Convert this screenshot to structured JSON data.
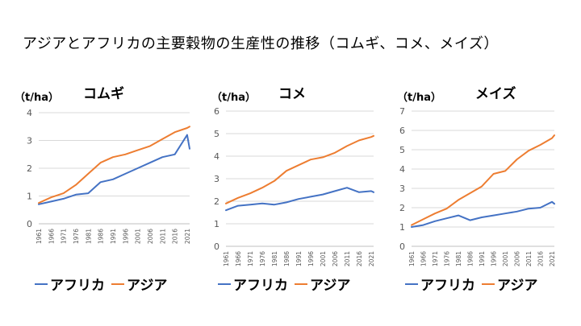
{
  "title": "アジアとアフリカの主要穀物の生産性の推移（コムギ、コメ、メイズ）",
  "colors": {
    "africa": "#4472C4",
    "asia": "#ED7D31",
    "grid": "#D9D9D9",
    "axis": "#BFBFBF"
  },
  "chart_data": [
    {
      "type": "line",
      "title": "コムギ",
      "ylabel": "（t/ha）",
      "ylim": [
        0,
        4
      ],
      "yticks": [
        0,
        1,
        2,
        3,
        4
      ],
      "xticks": [
        "1961",
        "1966",
        "1971",
        "1976",
        "1981",
        "1986",
        "1991",
        "1996",
        "2001",
        "2006",
        "2011",
        "2016",
        "2021"
      ],
      "x": [
        1961,
        1966,
        1971,
        1976,
        1981,
        1986,
        1991,
        1996,
        2001,
        2006,
        2011,
        2016,
        2021,
        2022
      ],
      "series": [
        {
          "name": "アフリカ",
          "values": [
            0.7,
            0.8,
            0.9,
            1.05,
            1.1,
            1.5,
            1.6,
            1.8,
            2.0,
            2.2,
            2.4,
            2.5,
            3.2,
            2.7
          ]
        },
        {
          "name": "アジア",
          "values": [
            0.75,
            0.95,
            1.1,
            1.4,
            1.8,
            2.2,
            2.4,
            2.5,
            2.65,
            2.8,
            3.05,
            3.3,
            3.45,
            3.5
          ]
        }
      ]
    },
    {
      "type": "line",
      "title": "コメ",
      "ylabel": "（t/ha）",
      "ylim": [
        0,
        6
      ],
      "yticks": [
        0,
        1,
        2,
        3,
        4,
        5,
        6
      ],
      "xticks": [
        "1961",
        "1966",
        "1971",
        "1976",
        "1981",
        "1986",
        "1991",
        "1996",
        "2001",
        "2006",
        "2011",
        "2016",
        "2021"
      ],
      "x": [
        1961,
        1966,
        1971,
        1976,
        1981,
        1986,
        1991,
        1996,
        2001,
        2006,
        2011,
        2016,
        2021,
        2022
      ],
      "series": [
        {
          "name": "アフリカ",
          "values": [
            1.6,
            1.8,
            1.85,
            1.9,
            1.85,
            1.95,
            2.1,
            2.2,
            2.3,
            2.45,
            2.6,
            2.4,
            2.45,
            2.4
          ]
        },
        {
          "name": "アジア",
          "values": [
            1.9,
            2.15,
            2.35,
            2.6,
            2.9,
            3.35,
            3.6,
            3.85,
            3.95,
            4.15,
            4.45,
            4.7,
            4.85,
            4.9
          ]
        }
      ]
    },
    {
      "type": "line",
      "title": "メイズ",
      "ylabel": "（t/ha）",
      "ylim": [
        0,
        7
      ],
      "yticks": [
        0,
        1,
        2,
        3,
        4,
        5,
        6,
        7
      ],
      "xticks": [
        "1961",
        "1966",
        "1971",
        "1976",
        "1981",
        "1986",
        "1991",
        "1996",
        "2001",
        "2006",
        "2011",
        "2016",
        "2021"
      ],
      "x": [
        1961,
        1966,
        1971,
        1976,
        1981,
        1986,
        1991,
        1996,
        2001,
        2006,
        2011,
        2016,
        2021,
        2022
      ],
      "series": [
        {
          "name": "アフリカ",
          "values": [
            1.0,
            1.1,
            1.3,
            1.45,
            1.6,
            1.35,
            1.5,
            1.6,
            1.7,
            1.8,
            1.95,
            2.0,
            2.3,
            2.2
          ]
        },
        {
          "name": "アジア",
          "values": [
            1.1,
            1.4,
            1.7,
            1.95,
            2.4,
            2.75,
            3.1,
            3.75,
            3.9,
            4.5,
            4.95,
            5.25,
            5.6,
            5.75
          ]
        }
      ]
    }
  ]
}
